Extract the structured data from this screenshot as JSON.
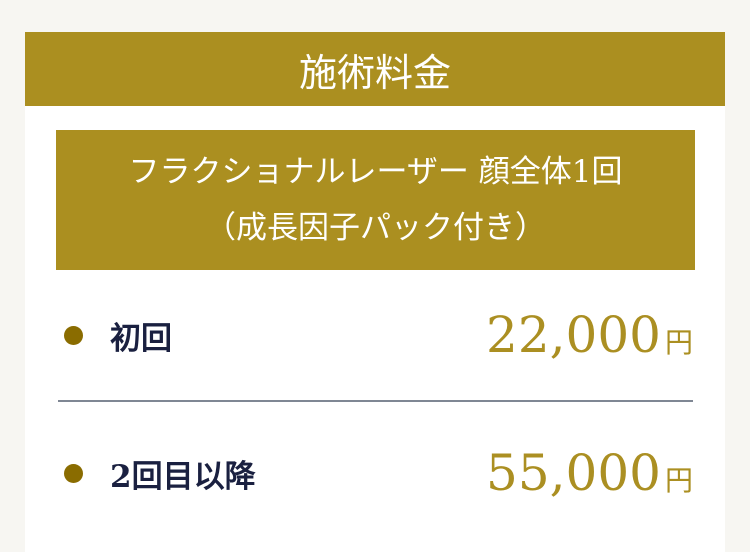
{
  "header": {
    "title": "施術料金"
  },
  "treatment": {
    "line1": "フラクショナルレーザー 顔全体1回",
    "line2": "（成長因子パック付き）"
  },
  "prices": [
    {
      "label": "初回",
      "amount": "22,000",
      "unit": "円"
    },
    {
      "label": "2回目以降",
      "amount": "55,000",
      "unit": "円"
    }
  ],
  "colors": {
    "accent": "#ab8f20",
    "bullet": "#8a6c00",
    "label": "#1a2040",
    "background": "#f7f6f2"
  }
}
